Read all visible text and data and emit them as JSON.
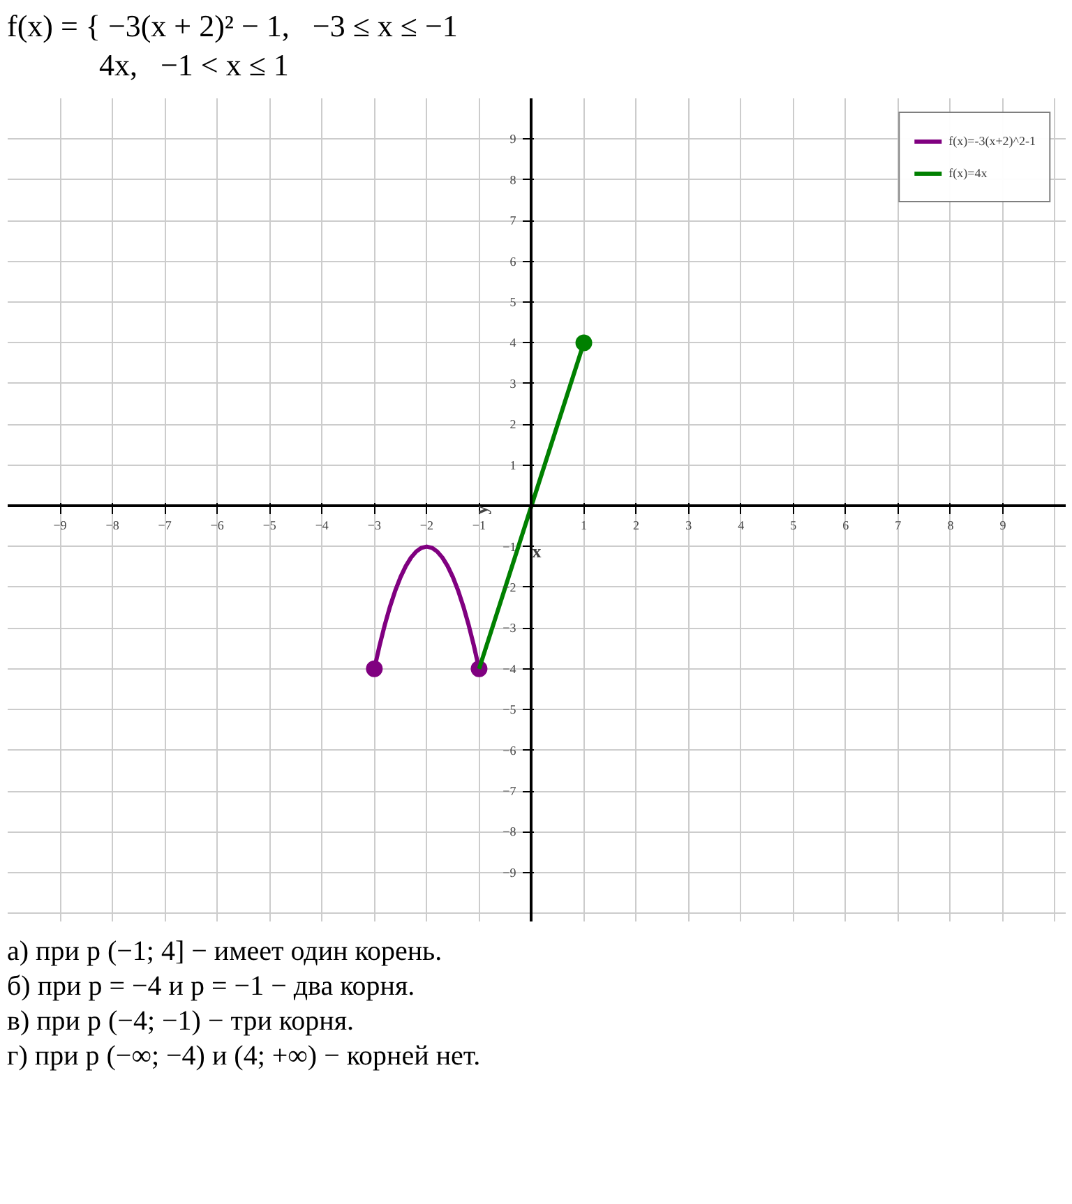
{
  "chart_data": {
    "type": "line",
    "xlabel": "x",
    "ylabel": "y",
    "xlim": [
      -10,
      10.2
    ],
    "ylim": [
      -10.2,
      10
    ],
    "xticks": [
      -9,
      -8,
      -7,
      -6,
      -5,
      -4,
      -3,
      -2,
      -1,
      1,
      2,
      3,
      4,
      5,
      6,
      7,
      8,
      9
    ],
    "yticks": [
      -9,
      -8,
      -7,
      -6,
      -5,
      -4,
      -3,
      -2,
      -1,
      1,
      2,
      3,
      4,
      5,
      6,
      7,
      8,
      9
    ],
    "grid": true,
    "legend": "top right",
    "line_style": "solid",
    "series": [
      {
        "name": "f(x)=-3(x+2)^2-1",
        "color": "#800080",
        "x": [
          -3,
          -2.9,
          -2.8,
          -2.7,
          -2.6,
          -2.5,
          -2.4,
          -2.3,
          -2.2,
          -2.1,
          -2,
          -1.9,
          -1.8,
          -1.7,
          -1.6,
          -1.5,
          -1.4,
          -1.3,
          -1.2,
          -1.1,
          -1
        ],
        "values": [
          -4,
          -3.43,
          -2.92,
          -2.47,
          -2.08,
          -1.75,
          -1.48,
          -1.27,
          -1.12,
          -1.03,
          -1,
          -1.03,
          -1.12,
          -1.27,
          -1.48,
          -1.75,
          -2.08,
          -2.47,
          -2.92,
          -3.43,
          -4
        ]
      },
      {
        "name": "f(x)=4x",
        "color": "#008000",
        "x": [
          -1,
          1
        ],
        "values": [
          -4,
          4
        ]
      },
      {
        "type": "scatter",
        "marker": "circle",
        "color": "#800080",
        "x": [
          -3,
          -1
        ],
        "values": [
          -4,
          -4
        ]
      },
      {
        "type": "scatter",
        "marker": "circle",
        "color": "#008000",
        "x": [
          1
        ],
        "values": [
          4
        ]
      }
    ],
    "annotations": [
      "f(x) = { −3(x + 2)² − 1,   −3 ≤ x ≤ −1",
      "            4x,   −1 < x ≤ 1",
      "а) при p (−1; 4] − имеет один корень.",
      "б) при p = −4 и p = −1 − два корня.",
      "в) при p (−4; −1) − три корня.",
      "г) при p (−∞; −4) и (4; +∞) − корней нет."
    ]
  }
}
